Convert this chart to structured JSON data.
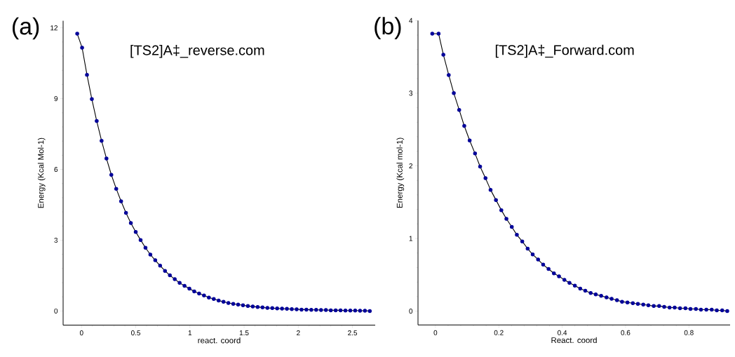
{
  "chart_data": [
    {
      "type": "line",
      "title": "[TS2]A‡_reverse.com",
      "xlabel": "react. coord",
      "ylabel": "Energy (Kcal Mol-1)",
      "annotations": [
        "(a)"
      ],
      "marker": "circle",
      "line_style": "solid",
      "xlim": [
        -0.17,
        2.71
      ],
      "ylim": [
        -0.6,
        12.3
      ],
      "xticks": [
        0,
        0.5,
        1,
        1.5,
        2,
        2.5
      ],
      "yticks": [
        0,
        3,
        6,
        9,
        12
      ],
      "x": [
        -0.04,
        0.005,
        0.05,
        0.095,
        0.14,
        0.185,
        0.23,
        0.275,
        0.32,
        0.365,
        0.41,
        0.455,
        0.5,
        0.545,
        0.59,
        0.635,
        0.68,
        0.725,
        0.77,
        0.815,
        0.86,
        0.905,
        0.95,
        0.995,
        1.04,
        1.085,
        1.13,
        1.175,
        1.22,
        1.265,
        1.31,
        1.355,
        1.4,
        1.445,
        1.49,
        1.535,
        1.58,
        1.625,
        1.67,
        1.715,
        1.76,
        1.805,
        1.85,
        1.895,
        1.94,
        1.985,
        2.03,
        2.075,
        2.12,
        2.165,
        2.21,
        2.255,
        2.3,
        2.345,
        2.39,
        2.435,
        2.48,
        2.525,
        2.57,
        2.615,
        2.66
      ],
      "series": [
        {
          "color": "#000099",
          "values": [
            11.75,
            11.16,
            10.01,
            8.98,
            8.05,
            7.21,
            6.46,
            5.77,
            5.18,
            4.65,
            4.16,
            3.73,
            3.35,
            3.01,
            2.68,
            2.39,
            2.15,
            1.92,
            1.7,
            1.51,
            1.35,
            1.19,
            1.07,
            0.95,
            0.83,
            0.74,
            0.66,
            0.57,
            0.51,
            0.44,
            0.39,
            0.34,
            0.3,
            0.27,
            0.24,
            0.21,
            0.19,
            0.17,
            0.15,
            0.13,
            0.12,
            0.11,
            0.1,
            0.09,
            0.08,
            0.07,
            0.06,
            0.06,
            0.05,
            0.05,
            0.04,
            0.04,
            0.03,
            0.03,
            0.03,
            0.02,
            0.02,
            0.02,
            0.01,
            0.01,
            0.0
          ]
        }
      ]
    },
    {
      "type": "line",
      "title": "[TS2]A‡_Forward.com",
      "xlabel": "React. coord",
      "ylabel": "Energy (Kcal mol-1)",
      "annotations": [
        "(b)"
      ],
      "marker": "circle",
      "line_style": "solid",
      "xlim": [
        -0.055,
        0.93
      ],
      "ylim": [
        -0.19,
        4
      ],
      "xticks": [
        0,
        0.2,
        0.4,
        0.6,
        0.8
      ],
      "yticks": [
        0,
        1,
        2,
        3,
        4
      ],
      "x": [
        -0.01,
        0.01,
        0.025,
        0.042,
        0.058,
        0.075,
        0.091,
        0.108,
        0.125,
        0.141,
        0.158,
        0.174,
        0.191,
        0.208,
        0.224,
        0.241,
        0.257,
        0.274,
        0.291,
        0.307,
        0.324,
        0.34,
        0.357,
        0.374,
        0.39,
        0.407,
        0.423,
        0.44,
        0.457,
        0.473,
        0.49,
        0.506,
        0.523,
        0.54,
        0.556,
        0.573,
        0.589,
        0.606,
        0.623,
        0.639,
        0.656,
        0.672,
        0.689,
        0.706,
        0.722,
        0.739,
        0.755,
        0.772,
        0.789,
        0.805,
        0.822,
        0.838,
        0.855,
        0.872,
        0.888,
        0.905,
        0.921
      ],
      "series": [
        {
          "color": "#000099",
          "values": [
            3.82,
            3.82,
            3.53,
            3.25,
            3.0,
            2.77,
            2.55,
            2.35,
            2.17,
            1.99,
            1.83,
            1.67,
            1.53,
            1.39,
            1.27,
            1.16,
            1.05,
            0.96,
            0.86,
            0.78,
            0.71,
            0.64,
            0.58,
            0.52,
            0.48,
            0.43,
            0.39,
            0.35,
            0.31,
            0.28,
            0.25,
            0.23,
            0.21,
            0.19,
            0.17,
            0.15,
            0.13,
            0.12,
            0.11,
            0.1,
            0.09,
            0.08,
            0.07,
            0.07,
            0.06,
            0.05,
            0.05,
            0.04,
            0.04,
            0.03,
            0.03,
            0.02,
            0.02,
            0.02,
            0.01,
            0.01,
            0.0
          ]
        }
      ]
    }
  ]
}
